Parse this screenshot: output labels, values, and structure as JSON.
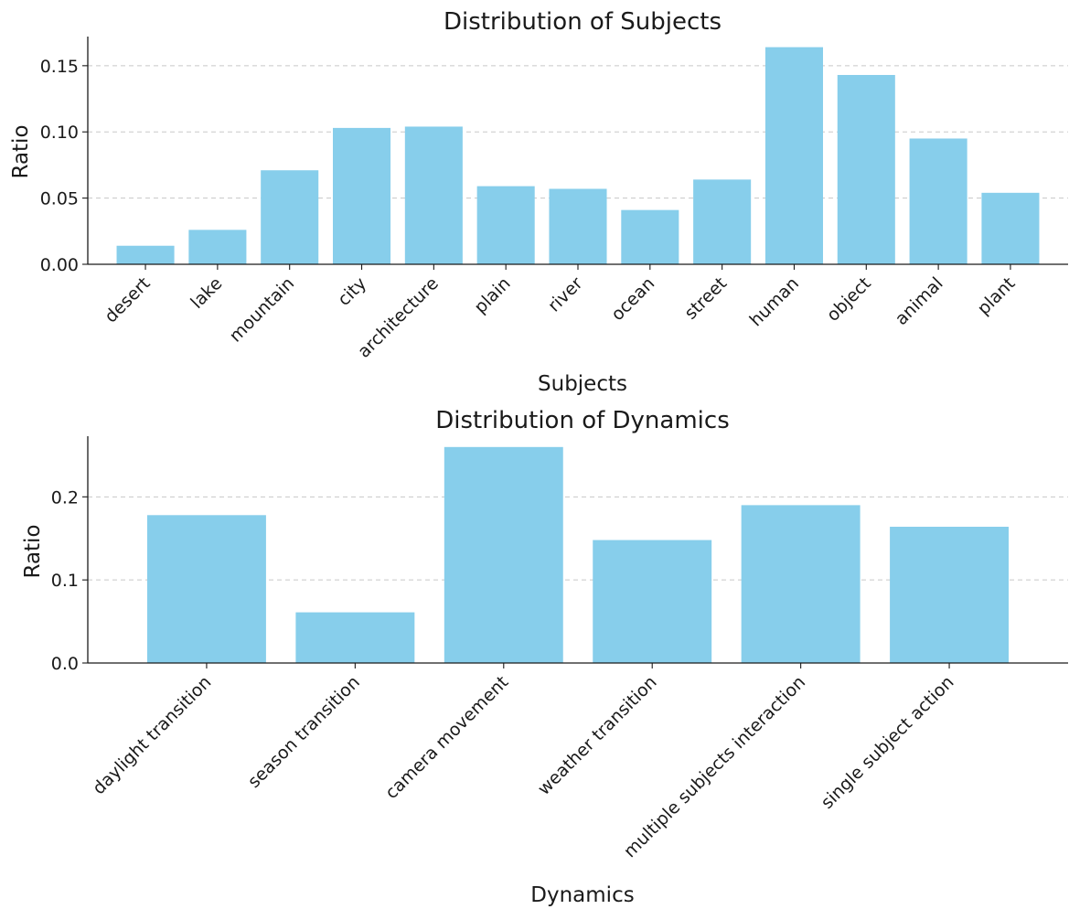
{
  "chart_data": [
    {
      "type": "bar",
      "title": "Distribution of Subjects",
      "xlabel": "Subjects",
      "ylabel": "Ratio",
      "categories": [
        "desert",
        "lake",
        "mountain",
        "city",
        "architecture",
        "plain",
        "river",
        "ocean",
        "street",
        "human",
        "object",
        "animal",
        "plant"
      ],
      "values": [
        0.014,
        0.026,
        0.071,
        0.103,
        0.104,
        0.059,
        0.057,
        0.041,
        0.064,
        0.164,
        0.143,
        0.095,
        0.054
      ],
      "ylim": [
        0,
        0.172
      ],
      "yticks": [
        0.0,
        0.05,
        0.1,
        0.15
      ],
      "ytick_labels": [
        "0.00",
        "0.05",
        "0.10",
        "0.15"
      ],
      "grid": "y dashed",
      "bar_color": "#87CEEB"
    },
    {
      "type": "bar",
      "title": "Distribution of Dynamics",
      "xlabel": "Dynamics",
      "ylabel": "Ratio",
      "categories": [
        "daylight transition",
        "season transition",
        "camera movement",
        "weather transition",
        "multiple subjects interaction",
        "single subject action"
      ],
      "values": [
        0.178,
        0.061,
        0.26,
        0.148,
        0.19,
        0.164
      ],
      "ylim": [
        0,
        0.273
      ],
      "yticks": [
        0.0,
        0.1,
        0.2
      ],
      "ytick_labels": [
        "0.0",
        "0.1",
        "0.2"
      ],
      "grid": "y dashed",
      "bar_color": "#87CEEB"
    }
  ]
}
